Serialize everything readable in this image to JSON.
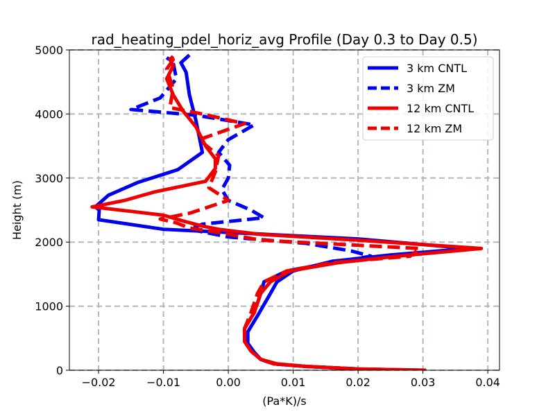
{
  "chart_data": {
    "type": "line",
    "title": "rad_heating_pdel_horiz_avg Profile (Day 0.3 to Day 0.5)",
    "xlabel": "(Pa*K)/s",
    "ylabel": "Height (m)",
    "xlim": [
      -0.0245,
      0.0418
    ],
    "ylim": [
      0,
      5000
    ],
    "xticks": [
      -0.02,
      -0.01,
      0.0,
      0.01,
      0.02,
      0.03,
      0.04
    ],
    "xtick_labels": [
      "−0.02",
      "−0.01",
      "0.00",
      "0.01",
      "0.02",
      "0.03",
      "0.04"
    ],
    "yticks": [
      0,
      1000,
      2000,
      3000,
      4000,
      5000
    ],
    "ytick_labels": [
      "0",
      "1000",
      "2000",
      "3000",
      "4000",
      "5000"
    ],
    "grid": true,
    "legend_position": "top-right",
    "series": [
      {
        "name": "3 km CNTL",
        "color": "#0000ee",
        "dashed": false,
        "points": [
          [
            0.029,
            0
          ],
          [
            0.02,
            20
          ],
          [
            0.012,
            60
          ],
          [
            0.007,
            100
          ],
          [
            0.005,
            170
          ],
          [
            0.004,
            280
          ],
          [
            0.003,
            420
          ],
          [
            0.003,
            600
          ],
          [
            0.0045,
            850
          ],
          [
            0.0065,
            1200
          ],
          [
            0.0075,
            1380
          ],
          [
            0.01,
            1550
          ],
          [
            0.016,
            1700
          ],
          [
            0.025,
            1800
          ],
          [
            0.037,
            1900
          ],
          [
            0.02,
            2050
          ],
          [
            0.0,
            2150
          ],
          [
            -0.01,
            2200
          ],
          [
            -0.02,
            2350
          ],
          [
            -0.0199,
            2500
          ],
          [
            -0.0205,
            2550
          ],
          [
            -0.0185,
            2730
          ],
          [
            -0.014,
            2930
          ],
          [
            -0.0078,
            3130
          ],
          [
            -0.004,
            3400
          ],
          [
            -0.005,
            3900
          ],
          [
            -0.006,
            4300
          ],
          [
            -0.0065,
            4650
          ],
          [
            -0.0073,
            4800
          ],
          [
            -0.006,
            4920
          ]
        ]
      },
      {
        "name": "3 km ZM",
        "color": "#0000ee",
        "dashed": true,
        "points": [
          [
            0.0285,
            0
          ],
          [
            0.02,
            20
          ],
          [
            0.012,
            60
          ],
          [
            0.007,
            100
          ],
          [
            0.005,
            170
          ],
          [
            0.0035,
            300
          ],
          [
            0.0025,
            450
          ],
          [
            0.0025,
            650
          ],
          [
            0.004,
            900
          ],
          [
            0.005,
            1200
          ],
          [
            0.0055,
            1380
          ],
          [
            0.009,
            1550
          ],
          [
            0.016,
            1680
          ],
          [
            0.022,
            1780
          ],
          [
            0.019,
            1860
          ],
          [
            0.012,
            1980
          ],
          [
            0.0,
            2080
          ],
          [
            -0.006,
            2200
          ],
          [
            -0.004,
            2280
          ],
          [
            0.0055,
            2380
          ],
          [
            0.0035,
            2500
          ],
          [
            0.0,
            2650
          ],
          [
            -0.001,
            2820
          ],
          [
            0.0,
            3000
          ],
          [
            0.0002,
            3200
          ],
          [
            -0.0015,
            3400
          ],
          [
            0.0,
            3600
          ],
          [
            0.004,
            3830
          ],
          [
            -0.005,
            3980
          ],
          [
            -0.015,
            4070
          ],
          [
            -0.0105,
            4250
          ],
          [
            -0.008,
            4550
          ],
          [
            -0.0085,
            4800
          ],
          [
            -0.0095,
            4880
          ]
        ]
      },
      {
        "name": "12 km CNTL",
        "color": "#ee0000",
        "dashed": false,
        "points": [
          [
            0.0305,
            0
          ],
          [
            0.02,
            20
          ],
          [
            0.012,
            60
          ],
          [
            0.0075,
            100
          ],
          [
            0.005,
            170
          ],
          [
            0.0035,
            300
          ],
          [
            0.0025,
            450
          ],
          [
            0.0025,
            650
          ],
          [
            0.004,
            900
          ],
          [
            0.005,
            1200
          ],
          [
            0.0065,
            1380
          ],
          [
            0.0095,
            1550
          ],
          [
            0.017,
            1680
          ],
          [
            0.026,
            1780
          ],
          [
            0.039,
            1900
          ],
          [
            0.02,
            2030
          ],
          [
            0.005,
            2120
          ],
          [
            -0.0015,
            2200
          ],
          [
            -0.004,
            2250
          ],
          [
            -0.007,
            2330
          ],
          [
            -0.01,
            2420
          ],
          [
            -0.015,
            2480
          ],
          [
            -0.021,
            2550
          ],
          [
            -0.016,
            2650
          ],
          [
            -0.0115,
            2780
          ],
          [
            -0.0035,
            2950
          ],
          [
            -0.002,
            3150
          ],
          [
            -0.002,
            3300
          ],
          [
            -0.0035,
            3500
          ],
          [
            -0.005,
            3800
          ],
          [
            -0.007,
            4050
          ],
          [
            -0.0085,
            4300
          ],
          [
            -0.0095,
            4550
          ],
          [
            -0.0085,
            4750
          ],
          [
            -0.009,
            4850
          ],
          [
            -0.0085,
            4900
          ]
        ]
      },
      {
        "name": "12 km ZM",
        "color": "#ee0000",
        "dashed": true,
        "points": [
          [
            0.03,
            0
          ],
          [
            0.02,
            20
          ],
          [
            0.012,
            60
          ],
          [
            0.007,
            100
          ],
          [
            0.005,
            170
          ],
          [
            0.0035,
            300
          ],
          [
            0.0025,
            450
          ],
          [
            0.0025,
            650
          ],
          [
            0.0035,
            900
          ],
          [
            0.0045,
            1200
          ],
          [
            0.0055,
            1380
          ],
          [
            0.009,
            1550
          ],
          [
            0.016,
            1680
          ],
          [
            0.028,
            1780
          ],
          [
            0.0295,
            1900
          ],
          [
            0.02,
            1950
          ],
          [
            0.005,
            2030
          ],
          [
            -0.0015,
            2150
          ],
          [
            -0.006,
            2220
          ],
          [
            -0.008,
            2300
          ],
          [
            -0.0105,
            2360
          ],
          [
            -0.006,
            2450
          ],
          [
            0.0,
            2650
          ],
          [
            -0.003,
            2850
          ],
          [
            -0.002,
            3100
          ],
          [
            -0.0015,
            3350
          ],
          [
            -0.0045,
            3600
          ],
          [
            0.0025,
            3850
          ],
          [
            -0.004,
            4000
          ],
          [
            -0.009,
            4100
          ],
          [
            -0.0085,
            4400
          ],
          [
            -0.0095,
            4700
          ],
          [
            -0.0085,
            4850
          ],
          [
            -0.009,
            4900
          ]
        ]
      }
    ]
  }
}
